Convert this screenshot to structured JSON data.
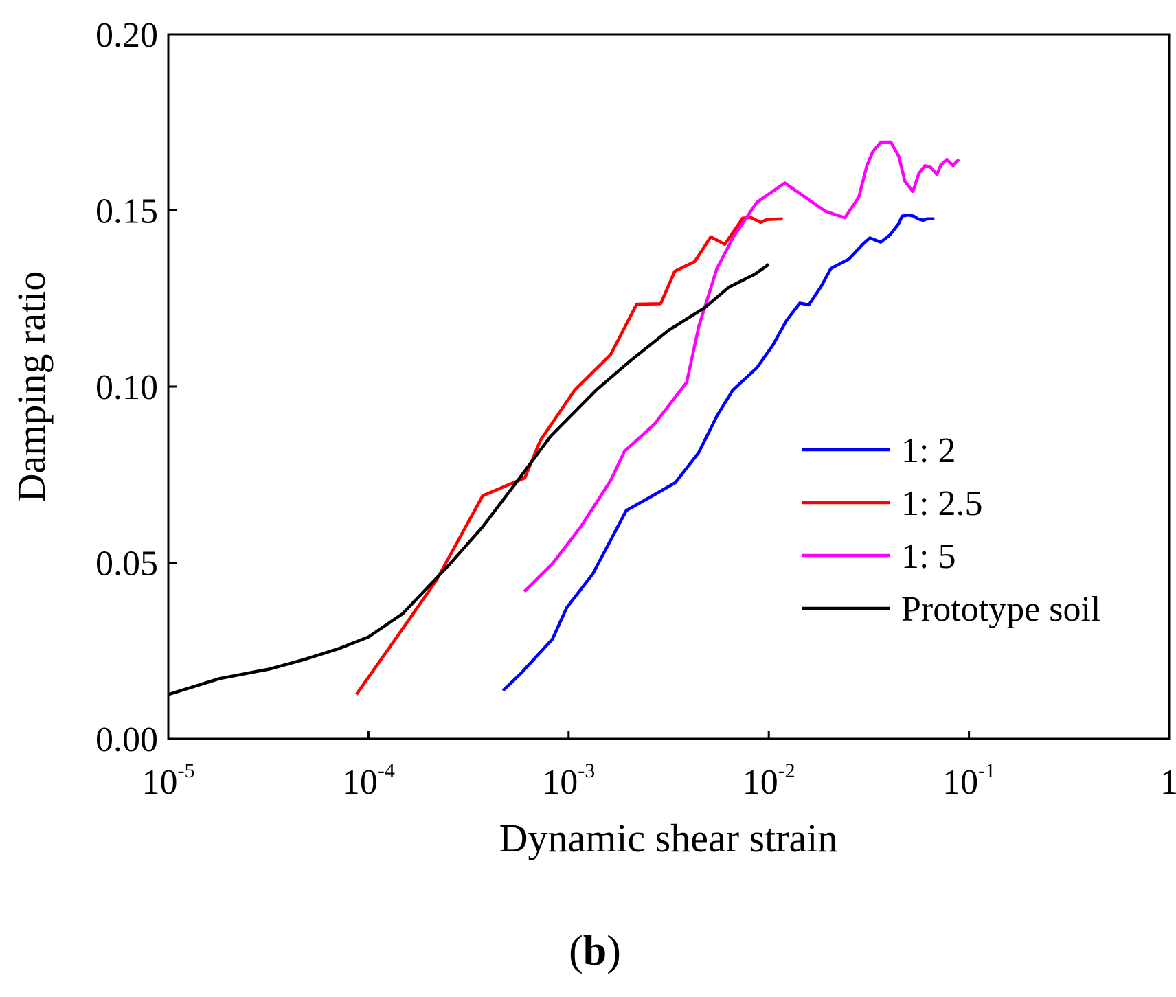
{
  "chart_data": {
    "type": "line",
    "xscale": "log",
    "xlim": [
      1e-05,
      1
    ],
    "ylim": [
      0,
      0.2
    ],
    "xlabel": "Dynamic shear strain",
    "ylabel": "Damping ratio",
    "panel_label": {
      "open": "(",
      "letter": "b",
      "close": ")"
    },
    "y_ticks": [
      {
        "value": 0.0,
        "label": "0.00"
      },
      {
        "value": 0.05,
        "label": "0.05"
      },
      {
        "value": 0.1,
        "label": "0.10"
      },
      {
        "value": 0.15,
        "label": "0.15"
      },
      {
        "value": 0.2,
        "label": "0.20"
      }
    ],
    "x_ticks": [
      {
        "value": 1e-05,
        "base": "10",
        "exp": "-5"
      },
      {
        "value": 0.0001,
        "base": "10",
        "exp": "-4"
      },
      {
        "value": 0.001,
        "base": "10",
        "exp": "-3"
      },
      {
        "value": 0.01,
        "base": "10",
        "exp": "-2"
      },
      {
        "value": 0.1,
        "base": "10",
        "exp": "-1"
      },
      {
        "value": 1,
        "base": "1",
        "exp": ""
      }
    ],
    "legend_position": "right",
    "series": [
      {
        "name": "1: 2",
        "color": "#0000ff",
        "points": [
          [
            0.00047,
            0.0137
          ],
          [
            0.00058,
            0.0187
          ],
          [
            0.00083,
            0.0283
          ],
          [
            0.00098,
            0.0373
          ],
          [
            0.00132,
            0.0468
          ],
          [
            0.00194,
            0.0648
          ],
          [
            0.00268,
            0.0693
          ],
          [
            0.00341,
            0.0727
          ],
          [
            0.00446,
            0.0812
          ],
          [
            0.00551,
            0.0917
          ],
          [
            0.00661,
            0.099
          ],
          [
            0.00871,
            0.1053
          ],
          [
            0.01046,
            0.1117
          ],
          [
            0.01227,
            0.1188
          ],
          [
            0.01429,
            0.1237
          ],
          [
            0.01585,
            0.1232
          ],
          [
            0.0182,
            0.1283
          ],
          [
            0.02042,
            0.1335
          ],
          [
            0.02512,
            0.1362
          ],
          [
            0.02951,
            0.1404
          ],
          [
            0.03199,
            0.1422
          ],
          [
            0.03622,
            0.141
          ],
          [
            0.0404,
            0.1431
          ],
          [
            0.0445,
            0.1462
          ],
          [
            0.0464,
            0.1484
          ],
          [
            0.0499,
            0.1487
          ],
          [
            0.0529,
            0.1484
          ],
          [
            0.0557,
            0.1476
          ],
          [
            0.0591,
            0.1472
          ],
          [
            0.0617,
            0.1476
          ],
          [
            0.0672,
            0.1476
          ]
        ]
      },
      {
        "name": "1: 2.5",
        "color": "#ff0000",
        "points": [
          [
            8.7e-05,
            0.0126
          ],
          [
            0.000148,
            0.0312
          ],
          [
            0.000219,
            0.0451
          ],
          [
            0.000372,
            0.069
          ],
          [
            0.000604,
            0.0741
          ],
          [
            0.000724,
            0.0848
          ],
          [
            0.001072,
            0.099
          ],
          [
            0.001622,
            0.1091
          ],
          [
            0.002188,
            0.1234
          ],
          [
            0.002884,
            0.1235
          ],
          [
            0.003388,
            0.1327
          ],
          [
            0.004266,
            0.1355
          ],
          [
            0.005129,
            0.1425
          ],
          [
            0.006026,
            0.1404
          ],
          [
            0.007413,
            0.1478
          ],
          [
            0.008128,
            0.148
          ],
          [
            0.00912,
            0.1466
          ],
          [
            0.009772,
            0.1474
          ],
          [
            0.01175,
            0.1476
          ]
        ]
      },
      {
        "name": "1: 5",
        "color": "#ff00ff",
        "points": [
          [
            0.0006,
            0.0418
          ],
          [
            0.00083,
            0.0497
          ],
          [
            0.00115,
            0.0602
          ],
          [
            0.00162,
            0.0733
          ],
          [
            0.0019,
            0.0816
          ],
          [
            0.00269,
            0.0894
          ],
          [
            0.00389,
            0.1012
          ],
          [
            0.00447,
            0.1171
          ],
          [
            0.0055,
            0.1334
          ],
          [
            0.00661,
            0.1422
          ],
          [
            0.00871,
            0.1523
          ],
          [
            0.01202,
            0.1578
          ],
          [
            0.0191,
            0.1498
          ],
          [
            0.02399,
            0.1479
          ],
          [
            0.02818,
            0.1538
          ],
          [
            0.0309,
            0.1627
          ],
          [
            0.03311,
            0.1667
          ],
          [
            0.03631,
            0.1694
          ],
          [
            0.04074,
            0.1694
          ],
          [
            0.04467,
            0.1653
          ],
          [
            0.04786,
            0.1583
          ],
          [
            0.05248,
            0.1554
          ],
          [
            0.05623,
            0.1605
          ],
          [
            0.06026,
            0.1627
          ],
          [
            0.06457,
            0.1622
          ],
          [
            0.06918,
            0.1602
          ],
          [
            0.07244,
            0.1629
          ],
          [
            0.07762,
            0.1645
          ],
          [
            0.08318,
            0.1627
          ],
          [
            0.08913,
            0.1645
          ]
        ]
      },
      {
        "name": "Prototype soil",
        "color": "#000000",
        "points": [
          [
            1e-05,
            0.0126
          ],
          [
            1.8e-05,
            0.0171
          ],
          [
            3.2e-05,
            0.0198
          ],
          [
            4.7e-05,
            0.0224
          ],
          [
            7.1e-05,
            0.0256
          ],
          [
            0.0001,
            0.0289
          ],
          [
            0.000148,
            0.0355
          ],
          [
            0.000251,
            0.0492
          ],
          [
            0.000372,
            0.0602
          ],
          [
            0.00055,
            0.0729
          ],
          [
            0.000813,
            0.0859
          ],
          [
            0.00138,
            0.0991
          ],
          [
            0.002042,
            0.1074
          ],
          [
            0.003162,
            0.116
          ],
          [
            0.004786,
            0.1224
          ],
          [
            0.00631,
            0.1282
          ],
          [
            0.008511,
            0.1319
          ],
          [
            0.01,
            0.1347
          ]
        ]
      }
    ]
  }
}
